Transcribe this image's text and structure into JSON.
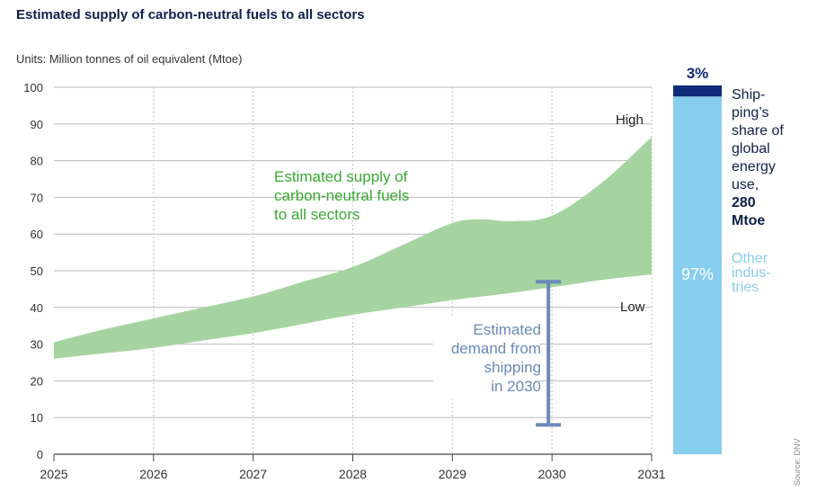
{
  "title": "Estimated supply of carbon-neutral fuels to all sectors",
  "units_label": "Units: Million tonnes of oil equivalent (Mtoe)",
  "source": "Source: DNV",
  "colors": {
    "supply_band": "#a6d4a0",
    "supply_label": "#3aa935",
    "demand": "#6b88b8",
    "shipping": "#0f2b7a",
    "other": "#87cdee",
    "text_dark": "#0f204b",
    "grid": "#bbbbbb"
  },
  "chart_data": [
    {
      "type": "area",
      "x": [
        2025,
        2025.5,
        2026,
        2026.5,
        2027,
        2027.5,
        2028,
        2028.5,
        2029,
        2029.3,
        2029.6,
        2030,
        2030.5,
        2031
      ],
      "series": [
        {
          "name": "High",
          "values": [
            30.5,
            34,
            37,
            40,
            43,
            47,
            51,
            57,
            63,
            64,
            63.5,
            65,
            74,
            86.5
          ]
        },
        {
          "name": "Low",
          "values": [
            26,
            27.5,
            29,
            31,
            33,
            35.5,
            38,
            40,
            42,
            43,
            44,
            45.5,
            47.5,
            49
          ]
        }
      ],
      "xlim": [
        2025,
        2031
      ],
      "ylim": [
        0,
        100
      ],
      "x_ticks": [
        2025,
        2026,
        2027,
        2028,
        2029,
        2030,
        2031
      ],
      "y_ticks": [
        0,
        10,
        20,
        30,
        40,
        50,
        60,
        70,
        80,
        90,
        100
      ],
      "grid": true,
      "band_label": "Estimated supply of carbon-neutral fuels to all sectors",
      "band_label_lines": [
        "Estimated supply of",
        "carbon-neutral fuels",
        "to all sectors"
      ],
      "demand_range": {
        "x": 2030,
        "low": 8,
        "high": 47
      },
      "annotations": {
        "high": "High",
        "low": "Low",
        "demand_lines": [
          "Estimated",
          "demand from",
          "shipping",
          "in 2030"
        ]
      }
    },
    {
      "type": "bar",
      "stacked": true,
      "categories": [
        "Global energy use"
      ],
      "series": [
        {
          "name": "Other industries",
          "values": [
            97
          ]
        },
        {
          "name": "Shipping's share of global energy use, 280 Mtoe",
          "values": [
            3
          ]
        }
      ],
      "labels": {
        "shipping_pct": "3%",
        "other_pct": "97%",
        "shipping_lines": [
          "Ship-",
          "ping’s",
          "share of",
          "global",
          "energy",
          "use,"
        ],
        "shipping_bold_lines": [
          "280",
          "Mtoe"
        ],
        "other_lines": [
          "Other",
          "indus-",
          "tries"
        ]
      }
    }
  ]
}
